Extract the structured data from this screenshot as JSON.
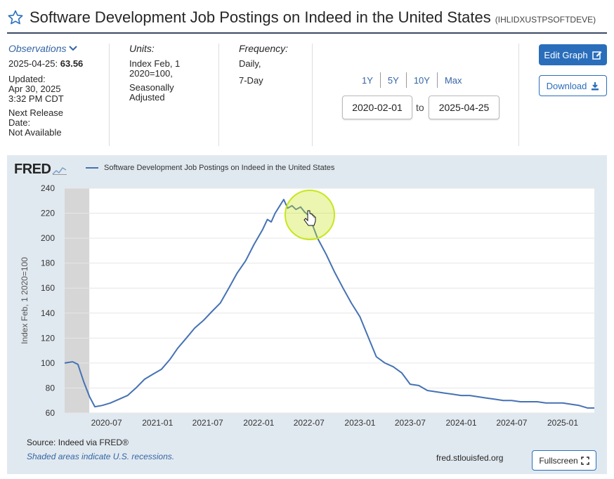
{
  "header": {
    "title": "Software Development Job Postings on Indeed in the United States",
    "series_id": "(IHLIDXUSTPSOFTDEVE)"
  },
  "observations": {
    "link_label": "Observations",
    "date": "2025-04-25:",
    "value": "63.56",
    "updated_label": "Updated:",
    "updated_date": "Apr 30, 2025",
    "updated_time": "3:32 PM CDT",
    "next_release_label_1": "Next Release",
    "next_release_label_2": "Date:",
    "next_release_value": "Not Available"
  },
  "units": {
    "label": "Units:",
    "line1": "Index Feb, 1",
    "line2": "2020=100,",
    "line3": "Seasonally",
    "line4": "Adjusted"
  },
  "frequency": {
    "label": "Frequency:",
    "line1": "Daily,",
    "line2": "7-Day"
  },
  "range": {
    "links": [
      "1Y",
      "5Y",
      "10Y",
      "Max"
    ],
    "start": "2020-02-01",
    "to_label": "to",
    "end": "2025-04-25"
  },
  "buttons": {
    "edit_graph": "Edit Graph",
    "download": "Download",
    "fullscreen": "Fullscreen"
  },
  "graph": {
    "logo": "FRED",
    "legend": "Software Development Job Postings on Indeed in the United States",
    "source": "Source: Indeed via FRED®",
    "shaded_note": "Shaded areas indicate U.S. recessions.",
    "site": "fred.stlouisfed.org"
  },
  "colors": {
    "series": "#4572b4",
    "recession_shade": "#d6d6d6",
    "panel": "#e1e9f0",
    "highlight": "#c8e61e",
    "accent": "#2a6ebb"
  },
  "chart_data": {
    "type": "line",
    "title": "Software Development Job Postings on Indeed in the United States",
    "xlabel": "",
    "ylabel": "Index Feb, 1 2020=100",
    "ylim": [
      60,
      240
    ],
    "yticks": [
      60,
      80,
      100,
      120,
      140,
      160,
      180,
      200,
      220,
      240
    ],
    "xlim": [
      "2020-02-01",
      "2025-04-25"
    ],
    "xtick_labels": [
      "2020-07",
      "2021-01",
      "2021-07",
      "2022-01",
      "2022-07",
      "2023-01",
      "2023-07",
      "2024-01",
      "2024-07",
      "2025-01"
    ],
    "xtick_dates": [
      "2020-07-01",
      "2021-01-01",
      "2021-07-01",
      "2022-01-01",
      "2022-07-01",
      "2023-01-01",
      "2023-07-01",
      "2024-01-01",
      "2024-07-01",
      "2025-01-01"
    ],
    "recessions": [
      [
        "2020-02-01",
        "2020-04-30"
      ]
    ],
    "series": [
      {
        "name": "Software Development Job Postings on Indeed in the United States",
        "x": [
          "2020-02-01",
          "2020-03-01",
          "2020-03-20",
          "2020-04-10",
          "2020-05-01",
          "2020-05-20",
          "2020-06-15",
          "2020-07-15",
          "2020-08-15",
          "2020-09-15",
          "2020-10-15",
          "2020-11-15",
          "2020-12-15",
          "2021-01-15",
          "2021-02-15",
          "2021-03-15",
          "2021-04-15",
          "2021-05-15",
          "2021-06-15",
          "2021-07-15",
          "2021-08-15",
          "2021-09-15",
          "2021-10-15",
          "2021-11-15",
          "2021-12-15",
          "2022-01-15",
          "2022-02-01",
          "2022-02-15",
          "2022-03-01",
          "2022-03-15",
          "2022-04-01",
          "2022-04-15",
          "2022-05-01",
          "2022-05-15",
          "2022-06-01",
          "2022-06-15",
          "2022-07-01",
          "2022-08-01",
          "2022-09-01",
          "2022-10-01",
          "2022-11-01",
          "2022-12-01",
          "2023-01-01",
          "2023-02-01",
          "2023-03-01",
          "2023-04-01",
          "2023-05-01",
          "2023-06-01",
          "2023-07-01",
          "2023-08-01",
          "2023-09-01",
          "2023-10-01",
          "2023-11-01",
          "2023-12-01",
          "2024-01-01",
          "2024-02-01",
          "2024-03-01",
          "2024-04-01",
          "2024-05-01",
          "2024-06-01",
          "2024-07-01",
          "2024-08-01",
          "2024-09-01",
          "2024-10-01",
          "2024-11-01",
          "2024-12-01",
          "2025-01-01",
          "2025-02-01",
          "2025-03-01",
          "2025-04-01",
          "2025-04-25"
        ],
        "values": [
          100,
          101,
          99,
          85,
          73,
          65,
          66,
          68,
          71,
          74,
          80,
          87,
          91,
          95,
          103,
          112,
          120,
          128,
          134,
          141,
          148,
          160,
          172,
          182,
          195,
          207,
          215,
          213,
          220,
          225,
          231,
          224,
          226,
          223,
          225,
          221,
          218,
          200,
          187,
          173,
          160,
          148,
          137,
          120,
          105,
          100,
          97,
          92,
          83,
          82,
          78,
          77,
          76,
          75,
          74,
          74,
          73,
          72,
          71,
          70,
          70,
          69,
          69,
          69,
          68,
          68,
          68,
          67,
          66,
          64,
          64
        ]
      }
    ]
  }
}
